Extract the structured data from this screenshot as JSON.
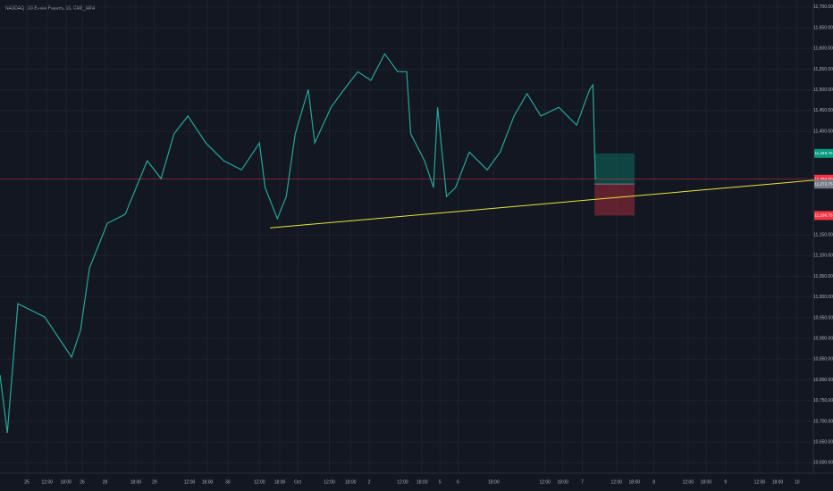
{
  "chart_data": {
    "type": "line",
    "title": "NASDAQ 100 E-mini Futures, 15, CME_MINI",
    "x": [
      0,
      0.9,
      2.2,
      5.5,
      8.8,
      9.9,
      11,
      13.2,
      15.4,
      18.1,
      19.8,
      21.4,
      23.1,
      25.3,
      27.5,
      29.7,
      31.9,
      32.6,
      34.1,
      35.2,
      36.3,
      37.9,
      38.7,
      40.7,
      42.3,
      44,
      45.6,
      47.3,
      48.9,
      50,
      50.5,
      52.2,
      53.3,
      53.8,
      54.9,
      56,
      57.7,
      59.9,
      61.5,
      63.2,
      64.8,
      66.5,
      68.7,
      70.9,
      72.5,
      72.9,
      73.2
    ],
    "series": [
      {
        "name": "NQ1!",
        "color": "#26a69a",
        "values": [
          10812,
          10672,
          10984,
          10952,
          10855,
          10920,
          11070,
          11178,
          11200,
          11329,
          11286,
          11394,
          11437,
          11372,
          11329,
          11307,
          11372,
          11264,
          11189,
          11243,
          11394,
          11501,
          11372,
          11458,
          11501,
          11544,
          11523,
          11587,
          11544,
          11544,
          11394,
          11329,
          11264,
          11458,
          11243,
          11264,
          11350,
          11307,
          11350,
          11437,
          11491,
          11437,
          11458,
          11415,
          11501,
          11512,
          11284.5
        ]
      }
    ],
    "xlim": [
      0,
      100
    ],
    "ylim": [
      10575,
      11717
    ],
    "xticks": [
      {
        "value": 3.3,
        "label": "25"
      },
      {
        "value": 5.8,
        "label": "12:00"
      },
      {
        "value": 8.1,
        "label": "18:00"
      },
      {
        "value": 10.1,
        "label": "26"
      },
      {
        "value": 12.9,
        "label": "28"
      },
      {
        "value": 16.7,
        "label": "18:00"
      },
      {
        "value": 19,
        "label": "29"
      },
      {
        "value": 23.3,
        "label": "12:00"
      },
      {
        "value": 25.5,
        "label": "18:00"
      },
      {
        "value": 28,
        "label": "30"
      },
      {
        "value": 31.9,
        "label": "12:00"
      },
      {
        "value": 34.4,
        "label": "18:00"
      },
      {
        "value": 36.6,
        "label": "Oct"
      },
      {
        "value": 40.5,
        "label": "12:00"
      },
      {
        "value": 43.1,
        "label": "18:00"
      },
      {
        "value": 45.4,
        "label": "2"
      },
      {
        "value": 49.5,
        "label": "12:00"
      },
      {
        "value": 51.9,
        "label": "18:00"
      },
      {
        "value": 54.1,
        "label": "5"
      },
      {
        "value": 56.3,
        "label": "6"
      },
      {
        "value": 60.7,
        "label": "18:00"
      },
      {
        "value": 67,
        "label": "12:00"
      },
      {
        "value": 69.2,
        "label": "18:00"
      },
      {
        "value": 71.6,
        "label": "7"
      },
      {
        "value": 75.8,
        "label": "12:00"
      },
      {
        "value": 78,
        "label": "18:00"
      },
      {
        "value": 80.4,
        "label": "8"
      },
      {
        "value": 84.6,
        "label": "12:00"
      },
      {
        "value": 86.8,
        "label": "18:00"
      },
      {
        "value": 89.2,
        "label": "9"
      },
      {
        "value": 93.4,
        "label": "12:00"
      },
      {
        "value": 95.6,
        "label": "18:00"
      },
      {
        "value": 98,
        "label": "10"
      }
    ],
    "yticks": [
      {
        "value": 10600,
        "label": "10,600.00"
      },
      {
        "value": 10650,
        "label": "10,650.00"
      },
      {
        "value": 10700,
        "label": "10,700.00"
      },
      {
        "value": 10750,
        "label": "10,750.00"
      },
      {
        "value": 10800,
        "label": "10,800.00"
      },
      {
        "value": 10850,
        "label": "10,850.00"
      },
      {
        "value": 10900,
        "label": "10,900.00"
      },
      {
        "value": 10950,
        "label": "10,950.00"
      },
      {
        "value": 11000,
        "label": "11,000.00"
      },
      {
        "value": 11050,
        "label": "11,050.00"
      },
      {
        "value": 11100,
        "label": "11,100.00"
      },
      {
        "value": 11150,
        "label": "11,150.00"
      },
      {
        "value": 11400,
        "label": "11,400.00"
      },
      {
        "value": 11450,
        "label": "11,450.00"
      },
      {
        "value": 11500,
        "label": "11,500.00"
      },
      {
        "value": 11550,
        "label": "11,550.00"
      },
      {
        "value": 11600,
        "label": "11,600.00"
      },
      {
        "value": 11650,
        "label": "11,650.00"
      },
      {
        "value": 11700,
        "label": "11,700.00"
      }
    ],
    "grid": true,
    "trendline": {
      "color": "#e6e63c",
      "x": [
        33.2,
        102.4
      ],
      "values": [
        11167,
        11286
      ]
    },
    "current_price": {
      "value": 11284.5,
      "label": "11,284.50",
      "color": "#f23645"
    },
    "position": {
      "x": [
        73.1,
        78
      ],
      "target": {
        "value": 11346.75,
        "label": "11,346.75",
        "color": "#089981"
      },
      "entry": {
        "value": 11272.75,
        "label": "11,272.75",
        "color": "#787b86"
      },
      "stop": {
        "value": 11196.75,
        "label": "11,196.75",
        "color": "#f23645"
      }
    }
  }
}
